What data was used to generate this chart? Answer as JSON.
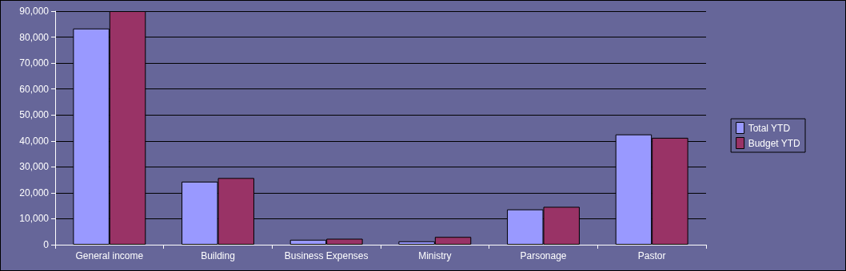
{
  "chart_data": {
    "type": "bar",
    "categories": [
      "General income",
      "Building",
      "Business Expenses",
      "Ministry",
      "Parsonage",
      "Pastor"
    ],
    "series": [
      {
        "name": "Total YTD",
        "color": "#9999ff",
        "values": [
          83300,
          24300,
          1900,
          1300,
          13600,
          42500
        ]
      },
      {
        "name": "Budget YTD",
        "color": "#993366",
        "values": [
          90000,
          25700,
          2300,
          3000,
          14600,
          41200
        ]
      }
    ],
    "ylim": [
      0,
      90000
    ],
    "yticks": [
      0,
      {
        "value": 10000,
        "label": "10,000"
      },
      {
        "value": 20000,
        "label": "20,000"
      },
      {
        "value": 30000,
        "label": "30,000"
      },
      {
        "value": 40000,
        "label": "40,000"
      },
      {
        "value": 50000,
        "label": "50,000"
      },
      {
        "value": 60000,
        "label": "60,000"
      },
      {
        "value": 70000,
        "label": "70,000"
      },
      {
        "value": 80000,
        "label": "80,000"
      },
      {
        "value": 90000,
        "label": "90,000"
      }
    ],
    "grid": "y",
    "legend": "right"
  }
}
